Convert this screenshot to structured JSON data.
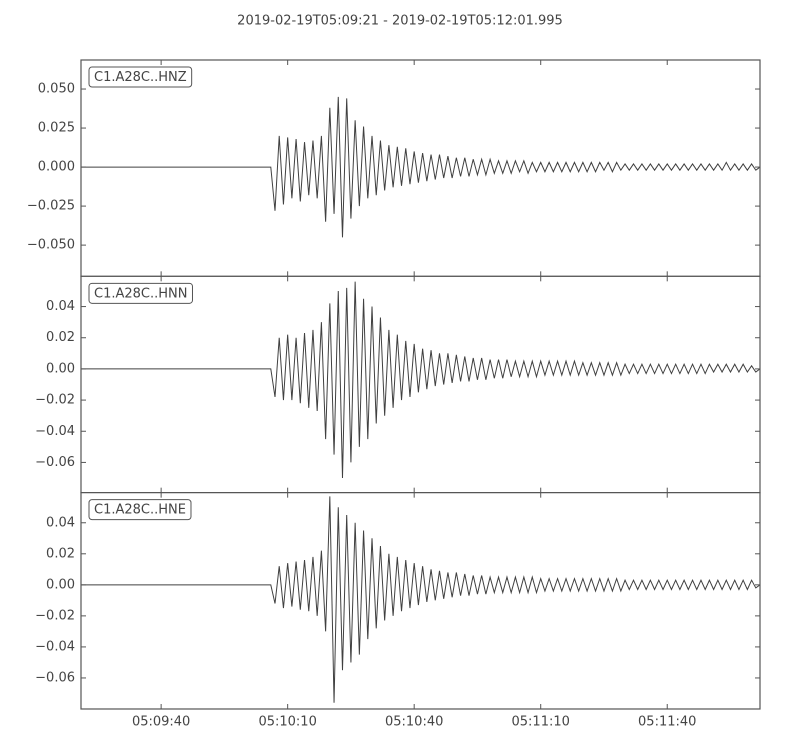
{
  "title": "2019-02-19T05:09:21  -  2019-02-19T05:12:01.995",
  "chart_data": [
    {
      "type": "line",
      "label": "C1.A28C..HNZ",
      "color": "#404040",
      "xlim": [
        "05:09:21",
        "05:12:01.995"
      ],
      "ylim": [
        -0.07,
        0.0686
      ],
      "yticks": [
        {
          "value": 0.05,
          "label": "0.050"
        },
        {
          "value": 0.025,
          "label": "0.025"
        },
        {
          "value": 0,
          "label": "0.000"
        },
        {
          "value": -0.025,
          "label": "−0.025"
        },
        {
          "value": -0.05,
          "label": "−0.050"
        }
      ],
      "x": [
        "05:09:21",
        "05:10:06",
        "05:10:07",
        "05:10:08",
        "05:10:09",
        "05:10:10",
        "05:10:11",
        "05:10:12",
        "05:10:13",
        "05:10:14",
        "05:10:15",
        "05:10:16",
        "05:10:17",
        "05:10:18",
        "05:10:19",
        "05:10:20",
        "05:10:21",
        "05:10:22",
        "05:10:23",
        "05:10:24",
        "05:10:25",
        "05:10:26",
        "05:10:27",
        "05:10:28",
        "05:10:29",
        "05:10:30",
        "05:10:31",
        "05:10:32",
        "05:10:33",
        "05:10:34",
        "05:10:35",
        "05:10:36",
        "05:10:37",
        "05:10:38",
        "05:10:39",
        "05:10:40",
        "05:10:41",
        "05:10:42",
        "05:10:43",
        "05:10:44",
        "05:10:45",
        "05:10:46",
        "05:10:47",
        "05:10:48",
        "05:10:49",
        "05:10:50",
        "05:10:51",
        "05:10:52",
        "05:10:53",
        "05:10:54",
        "05:10:55",
        "05:10:56",
        "05:10:57",
        "05:10:58",
        "05:10:59",
        "05:11:00",
        "05:11:01",
        "05:11:02",
        "05:11:03",
        "05:11:04",
        "05:11:05",
        "05:11:06",
        "05:11:07",
        "05:11:08",
        "05:11:09",
        "05:11:10",
        "05:11:11",
        "05:11:12",
        "05:11:13",
        "05:11:14",
        "05:11:15",
        "05:11:16",
        "05:11:17",
        "05:11:18",
        "05:11:19",
        "05:11:20",
        "05:11:21",
        "05:11:22",
        "05:11:23",
        "05:11:24",
        "05:11:25",
        "05:11:26",
        "05:11:27",
        "05:11:28",
        "05:11:29",
        "05:11:30",
        "05:11:31",
        "05:11:32",
        "05:11:33",
        "05:11:34",
        "05:11:35",
        "05:11:36",
        "05:11:37",
        "05:11:38",
        "05:11:39",
        "05:11:40",
        "05:11:41",
        "05:11:42",
        "05:11:43",
        "05:11:44",
        "05:11:45",
        "05:11:46",
        "05:11:47",
        "05:11:48",
        "05:11:49",
        "05:11:50",
        "05:11:51",
        "05:11:52",
        "05:11:53",
        "05:11:54",
        "05:11:55",
        "05:11:56",
        "05:11:57",
        "05:11:58",
        "05:11:59",
        "05:12:00",
        "05:12:01",
        "05:12:01.995"
      ],
      "values": [
        0,
        0,
        -0.028,
        0.02,
        -0.024,
        0.019,
        -0.02,
        0.018,
        -0.022,
        0.016,
        -0.018,
        0.017,
        -0.02,
        0.02,
        -0.035,
        0.038,
        -0.03,
        0.045,
        -0.045,
        0.044,
        -0.033,
        0.03,
        -0.025,
        0.026,
        -0.02,
        0.02,
        -0.018,
        0.017,
        -0.015,
        0.014,
        -0.013,
        0.013,
        -0.012,
        0.012,
        -0.011,
        0.01,
        -0.01,
        0.009,
        -0.009,
        0.008,
        -0.008,
        0.008,
        -0.007,
        0.007,
        -0.007,
        0.006,
        -0.006,
        0.006,
        -0.006,
        0.005,
        -0.005,
        0.005,
        -0.005,
        0.005,
        -0.004,
        0.004,
        -0.004,
        0.004,
        -0.004,
        0.004,
        -0.003,
        0.004,
        -0.004,
        0.003,
        -0.003,
        0.003,
        -0.003,
        0.003,
        -0.003,
        0.003,
        -0.003,
        0.003,
        -0.003,
        0.003,
        -0.003,
        0.003,
        -0.003,
        0.003,
        -0.003,
        0.003,
        -0.002,
        0.003,
        -0.003,
        0.003,
        -0.002,
        0.002,
        -0.002,
        0.002,
        -0.002,
        0.002,
        -0.002,
        0.002,
        -0.002,
        0.002,
        -0.002,
        0.002,
        -0.002,
        0.002,
        -0.002,
        0.002,
        -0.002,
        0.002,
        -0.002,
        0.002,
        -0.002,
        0.002,
        -0.002,
        0.002,
        -0.002,
        0.003,
        -0.002,
        0.002,
        -0.002,
        0.002,
        -0.002,
        0.002,
        -0.002,
        0
      ]
    },
    {
      "type": "line",
      "label": "C1.A28C..HNN",
      "color": "#404040",
      "xlim": [
        "05:09:21",
        "05:12:01.995"
      ],
      "ylim": [
        -0.0794,
        0.0594
      ],
      "yticks": [
        {
          "value": 0.04,
          "label": "0.04"
        },
        {
          "value": 0.02,
          "label": "0.02"
        },
        {
          "value": 0,
          "label": "0.00"
        },
        {
          "value": -0.02,
          "label": "−0.02"
        },
        {
          "value": -0.04,
          "label": "−0.04"
        },
        {
          "value": -0.06,
          "label": "−0.06"
        }
      ],
      "x": [
        "05:09:21",
        "05:10:06",
        "05:10:07",
        "05:10:08",
        "05:10:09",
        "05:10:10",
        "05:10:11",
        "05:10:12",
        "05:10:13",
        "05:10:14",
        "05:10:15",
        "05:10:16",
        "05:10:17",
        "05:10:18",
        "05:10:19",
        "05:10:20",
        "05:10:21",
        "05:10:22",
        "05:10:23",
        "05:10:24",
        "05:10:25",
        "05:10:26",
        "05:10:27",
        "05:10:28",
        "05:10:29",
        "05:10:30",
        "05:10:31",
        "05:10:32",
        "05:10:33",
        "05:10:34",
        "05:10:35",
        "05:10:36",
        "05:10:37",
        "05:10:38",
        "05:10:39",
        "05:10:40",
        "05:10:41",
        "05:10:42",
        "05:10:43",
        "05:10:44",
        "05:10:45",
        "05:10:46",
        "05:10:47",
        "05:10:48",
        "05:10:49",
        "05:10:50",
        "05:10:51",
        "05:10:52",
        "05:10:53",
        "05:10:54",
        "05:10:55",
        "05:10:56",
        "05:10:57",
        "05:10:58",
        "05:10:59",
        "05:11:00",
        "05:11:01",
        "05:11:02",
        "05:11:03",
        "05:11:04",
        "05:11:05",
        "05:11:06",
        "05:11:07",
        "05:11:08",
        "05:11:09",
        "05:11:10",
        "05:11:11",
        "05:11:12",
        "05:11:13",
        "05:11:14",
        "05:11:15",
        "05:11:16",
        "05:11:17",
        "05:11:18",
        "05:11:19",
        "05:11:20",
        "05:11:21",
        "05:11:22",
        "05:11:23",
        "05:11:24",
        "05:11:25",
        "05:11:26",
        "05:11:27",
        "05:11:28",
        "05:11:29",
        "05:11:30",
        "05:11:31",
        "05:11:32",
        "05:11:33",
        "05:11:34",
        "05:11:35",
        "05:11:36",
        "05:11:37",
        "05:11:38",
        "05:11:39",
        "05:11:40",
        "05:11:41",
        "05:11:42",
        "05:11:43",
        "05:11:44",
        "05:11:45",
        "05:11:46",
        "05:11:47",
        "05:11:48",
        "05:11:49",
        "05:11:50",
        "05:11:51",
        "05:11:52",
        "05:11:53",
        "05:11:54",
        "05:11:55",
        "05:11:56",
        "05:11:57",
        "05:11:58",
        "05:11:59",
        "05:12:00",
        "05:12:01",
        "05:12:01.995"
      ],
      "values": [
        0,
        0,
        -0.018,
        0.02,
        -0.02,
        0.022,
        -0.02,
        0.02,
        -0.022,
        0.023,
        -0.025,
        0.025,
        -0.027,
        0.03,
        -0.045,
        0.042,
        -0.055,
        0.05,
        -0.07,
        0.052,
        -0.06,
        0.056,
        -0.05,
        0.045,
        -0.045,
        0.04,
        -0.035,
        0.033,
        -0.03,
        0.025,
        -0.025,
        0.022,
        -0.02,
        0.018,
        -0.018,
        0.016,
        -0.015,
        0.013,
        -0.013,
        0.012,
        -0.011,
        0.01,
        -0.01,
        0.01,
        -0.009,
        0.009,
        -0.008,
        0.008,
        -0.008,
        0.007,
        -0.007,
        0.007,
        -0.007,
        0.006,
        -0.006,
        0.006,
        -0.006,
        0.006,
        -0.005,
        0.005,
        -0.005,
        0.005,
        -0.005,
        0.005,
        -0.005,
        0.005,
        -0.004,
        0.005,
        -0.004,
        0.005,
        -0.004,
        0.005,
        -0.004,
        0.005,
        -0.004,
        0.004,
        -0.004,
        0.004,
        -0.004,
        0.004,
        -0.004,
        0.004,
        -0.004,
        0.004,
        -0.004,
        0.003,
        -0.003,
        0.003,
        -0.003,
        0.003,
        -0.003,
        0.003,
        -0.003,
        0.003,
        -0.003,
        0.003,
        -0.003,
        0.003,
        -0.003,
        0.003,
        -0.003,
        0.003,
        -0.003,
        0.003,
        -0.003,
        0.003,
        -0.002,
        0.003,
        -0.002,
        0.003,
        -0.002,
        0.003,
        -0.002,
        0.003,
        -0.002,
        0.002,
        -0.002,
        0
      ]
    },
    {
      "type": "line",
      "label": "C1.A28C..HNE",
      "color": "#404040",
      "xlim": [
        "05:09:21",
        "05:12:01.995"
      ],
      "ylim": [
        -0.08,
        0.0594
      ],
      "yticks": [
        {
          "value": 0.04,
          "label": "0.04"
        },
        {
          "value": 0.02,
          "label": "0.02"
        },
        {
          "value": 0,
          "label": "0.00"
        },
        {
          "value": -0.02,
          "label": "−0.02"
        },
        {
          "value": -0.04,
          "label": "−0.04"
        },
        {
          "value": -0.06,
          "label": "−0.06"
        }
      ],
      "xticks": [
        "05:09:40",
        "05:10:10",
        "05:10:40",
        "05:11:10",
        "05:11:40"
      ],
      "x": [
        "05:09:21",
        "05:10:06",
        "05:10:07",
        "05:10:08",
        "05:10:09",
        "05:10:10",
        "05:10:11",
        "05:10:12",
        "05:10:13",
        "05:10:14",
        "05:10:15",
        "05:10:16",
        "05:10:17",
        "05:10:18",
        "05:10:19",
        "05:10:20",
        "05:10:21",
        "05:10:22",
        "05:10:23",
        "05:10:24",
        "05:10:25",
        "05:10:26",
        "05:10:27",
        "05:10:28",
        "05:10:29",
        "05:10:30",
        "05:10:31",
        "05:10:32",
        "05:10:33",
        "05:10:34",
        "05:10:35",
        "05:10:36",
        "05:10:37",
        "05:10:38",
        "05:10:39",
        "05:10:40",
        "05:10:41",
        "05:10:42",
        "05:10:43",
        "05:10:44",
        "05:10:45",
        "05:10:46",
        "05:10:47",
        "05:10:48",
        "05:10:49",
        "05:10:50",
        "05:10:51",
        "05:10:52",
        "05:10:53",
        "05:10:54",
        "05:10:55",
        "05:10:56",
        "05:10:57",
        "05:10:58",
        "05:10:59",
        "05:11:00",
        "05:11:01",
        "05:11:02",
        "05:11:03",
        "05:11:04",
        "05:11:05",
        "05:11:06",
        "05:11:07",
        "05:11:08",
        "05:11:09",
        "05:11:10",
        "05:11:11",
        "05:11:12",
        "05:11:13",
        "05:11:14",
        "05:11:15",
        "05:11:16",
        "05:11:17",
        "05:11:18",
        "05:11:19",
        "05:11:20",
        "05:11:21",
        "05:11:22",
        "05:11:23",
        "05:11:24",
        "05:11:25",
        "05:11:26",
        "05:11:27",
        "05:11:28",
        "05:11:29",
        "05:11:30",
        "05:11:31",
        "05:11:32",
        "05:11:33",
        "05:11:34",
        "05:11:35",
        "05:11:36",
        "05:11:37",
        "05:11:38",
        "05:11:39",
        "05:11:40",
        "05:11:41",
        "05:11:42",
        "05:11:43",
        "05:11:44",
        "05:11:45",
        "05:11:46",
        "05:11:47",
        "05:11:48",
        "05:11:49",
        "05:11:50",
        "05:11:51",
        "05:11:52",
        "05:11:53",
        "05:11:54",
        "05:11:55",
        "05:11:56",
        "05:11:57",
        "05:11:58",
        "05:11:59",
        "05:12:00",
        "05:12:01",
        "05:12:01.995"
      ],
      "values": [
        0,
        0,
        -0.012,
        0.012,
        -0.015,
        0.014,
        -0.014,
        0.015,
        -0.016,
        0.016,
        -0.017,
        0.018,
        -0.02,
        0.022,
        -0.03,
        0.057,
        -0.076,
        0.05,
        -0.055,
        0.045,
        -0.05,
        0.04,
        -0.045,
        0.035,
        -0.035,
        0.03,
        -0.028,
        0.025,
        -0.023,
        0.02,
        -0.02,
        0.018,
        -0.017,
        0.016,
        -0.015,
        0.014,
        -0.013,
        0.012,
        -0.011,
        0.01,
        -0.01,
        0.009,
        -0.009,
        0.008,
        -0.008,
        0.008,
        -0.007,
        0.007,
        -0.007,
        0.006,
        -0.006,
        0.006,
        -0.006,
        0.005,
        -0.005,
        0.005,
        -0.005,
        0.005,
        -0.005,
        0.005,
        -0.005,
        0.005,
        -0.005,
        0.005,
        -0.005,
        0.004,
        -0.004,
        0.004,
        -0.004,
        0.004,
        -0.004,
        0.004,
        -0.004,
        0.004,
        -0.004,
        0.004,
        -0.004,
        0.004,
        -0.004,
        0.004,
        -0.004,
        0.004,
        -0.004,
        0.004,
        -0.004,
        0.003,
        -0.003,
        0.003,
        -0.003,
        0.003,
        -0.003,
        0.003,
        -0.003,
        0.003,
        -0.003,
        0.003,
        -0.003,
        0.003,
        -0.003,
        0.003,
        -0.003,
        0.003,
        -0.003,
        0.003,
        -0.003,
        0.003,
        -0.003,
        0.003,
        -0.003,
        0.003,
        -0.003,
        0.003,
        -0.003,
        0.003,
        -0.003,
        0.003,
        -0.002,
        0
      ]
    }
  ]
}
